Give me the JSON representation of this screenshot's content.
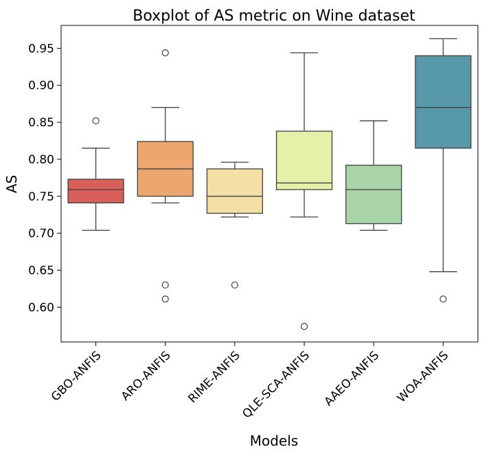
{
  "chart_data": {
    "type": "box",
    "title": "Boxplot of AS metric on Wine dataset",
    "xlabel": "Models",
    "ylabel": "AS",
    "ylim": [
      0.553,
      0.981
    ],
    "yticks": [
      0.6,
      0.65,
      0.7,
      0.75,
      0.8,
      0.85,
      0.9,
      0.95
    ],
    "ytick_labels": [
      "0.60",
      "0.65",
      "0.70",
      "0.75",
      "0.80",
      "0.85",
      "0.90",
      "0.95"
    ],
    "grid": false,
    "legend": "none",
    "categories": [
      "GBO-ANFIS",
      "ARO-ANFIS",
      "RIME-ANFIS",
      "QLE-SCA-ANFIS",
      "AAEO-ANFIS",
      "WOA-ANFIS"
    ],
    "boxes": [
      {
        "name": "GBO-ANFIS",
        "whisker_low": 0.704,
        "q1": 0.741,
        "median": 0.759,
        "q3": 0.773,
        "whisker_high": 0.815,
        "outliers": [
          0.852
        ],
        "color": "#d9605a"
      },
      {
        "name": "ARO-ANFIS",
        "whisker_low": 0.741,
        "q1": 0.75,
        "median": 0.787,
        "q3": 0.824,
        "whisker_high": 0.87,
        "outliers": [
          0.944,
          0.63,
          0.611
        ],
        "color": "#eca76e"
      },
      {
        "name": "RIME-ANFIS",
        "whisker_low": 0.722,
        "q1": 0.727,
        "median": 0.75,
        "q3": 0.787,
        "whisker_high": 0.796,
        "outliers": [
          0.63
        ],
        "color": "#f4dfa4"
      },
      {
        "name": "QLE-SCA-ANFIS",
        "whisker_low": 0.722,
        "q1": 0.759,
        "median": 0.768,
        "q3": 0.838,
        "whisker_high": 0.944,
        "outliers": [
          0.574
        ],
        "color": "#e6f0a8"
      },
      {
        "name": "AAEO-ANFIS",
        "whisker_low": 0.704,
        "q1": 0.713,
        "median": 0.759,
        "q3": 0.792,
        "whisker_high": 0.852,
        "outliers": [],
        "color": "#a8d4a8"
      },
      {
        "name": "WOA-ANFIS",
        "whisker_low": 0.648,
        "q1": 0.815,
        "median": 0.87,
        "q3": 0.94,
        "whisker_high": 0.963,
        "outliers": [
          0.611
        ],
        "color": "#5799aa"
      }
    ]
  }
}
